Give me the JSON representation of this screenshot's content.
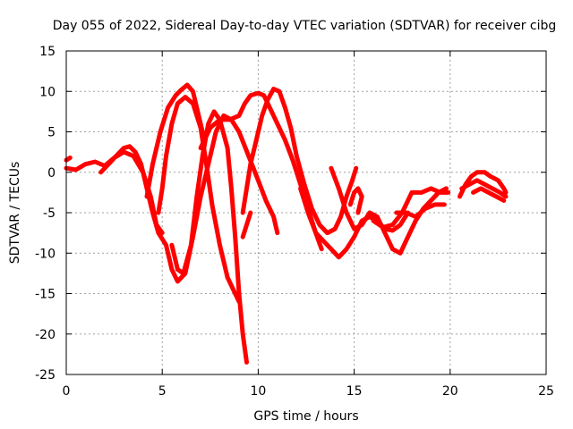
{
  "chart_data": {
    "type": "scatter",
    "title": "Day 055 of 2022, Sidereal Day-to-day VTEC variation (SDTVAR) for receiver cibg",
    "xlabel": "GPS time / hours",
    "ylabel": "SDTVAR / TECUs",
    "xlim": [
      0,
      25
    ],
    "ylim": [
      -25,
      15
    ],
    "xticks": [
      0,
      5,
      10,
      15,
      20,
      25
    ],
    "yticks": [
      -25,
      -20,
      -15,
      -10,
      -5,
      0,
      5,
      10,
      15
    ],
    "xtick_labels": [
      "0",
      "5",
      "10",
      "15",
      "20",
      "25"
    ],
    "ytick_labels": [
      "-25",
      "-20",
      "-15",
      "-10",
      "-5",
      "0",
      "5",
      "10",
      "15"
    ],
    "grid": true,
    "marker": "plus",
    "color": "#ff0000",
    "series": [
      {
        "name": "track-1",
        "points": [
          [
            0.0,
            0.5
          ],
          [
            0.5,
            0.3
          ],
          [
            1.0,
            1.0
          ],
          [
            1.5,
            1.3
          ],
          [
            2.0,
            0.8
          ],
          [
            2.5,
            1.8
          ],
          [
            3.0,
            2.5
          ],
          [
            3.5,
            2.0
          ],
          [
            4.0,
            0.0
          ],
          [
            4.4,
            -3.0
          ],
          [
            4.7,
            -6.5
          ],
          [
            5.0,
            -7.5
          ]
        ]
      },
      {
        "name": "track-2",
        "points": [
          [
            1.8,
            0.0
          ],
          [
            2.2,
            1.0
          ],
          [
            2.6,
            2.0
          ],
          [
            3.0,
            3.0
          ],
          [
            3.3,
            3.2
          ],
          [
            3.6,
            2.5
          ],
          [
            3.9,
            1.0
          ],
          [
            4.2,
            -2.0
          ],
          [
            4.5,
            -5.0
          ],
          [
            4.8,
            -7.5
          ],
          [
            5.2,
            -9.0
          ],
          [
            5.5,
            -12.0
          ],
          [
            5.8,
            -13.5
          ],
          [
            6.2,
            -12.5
          ],
          [
            6.6,
            -8.0
          ],
          [
            7.0,
            -3.0
          ],
          [
            7.4,
            1.0
          ],
          [
            7.8,
            5.0
          ],
          [
            8.2,
            7.0
          ],
          [
            8.6,
            6.5
          ],
          [
            9.0,
            5.0
          ]
        ]
      },
      {
        "name": "track-3",
        "points": [
          [
            4.8,
            -5.0
          ],
          [
            5.0,
            -2.0
          ],
          [
            5.2,
            2.0
          ],
          [
            5.5,
            6.0
          ],
          [
            5.8,
            8.5
          ],
          [
            6.2,
            9.3
          ],
          [
            6.6,
            8.5
          ],
          [
            7.0,
            5.5
          ],
          [
            7.3,
            1.0
          ],
          [
            7.6,
            -4.0
          ],
          [
            8.0,
            -9.0
          ],
          [
            8.4,
            -13.0
          ],
          [
            8.8,
            -15.0
          ],
          [
            9.0,
            -16.0
          ]
        ]
      },
      {
        "name": "track-4",
        "points": [
          [
            5.5,
            -9.0
          ],
          [
            5.8,
            -12.0
          ],
          [
            6.1,
            -12.5
          ],
          [
            6.5,
            -9.0
          ],
          [
            6.8,
            -3.0
          ],
          [
            7.1,
            2.0
          ],
          [
            7.4,
            6.0
          ],
          [
            7.7,
            7.5
          ],
          [
            8.0,
            6.5
          ],
          [
            8.4,
            3.0
          ],
          [
            8.6,
            -2.0
          ],
          [
            8.8,
            -8.0
          ],
          [
            9.0,
            -15.0
          ],
          [
            9.2,
            -20.0
          ],
          [
            9.4,
            -23.5
          ]
        ]
      },
      {
        "name": "track-5",
        "points": [
          [
            4.2,
            -3.0
          ],
          [
            4.5,
            1.0
          ],
          [
            4.9,
            5.0
          ],
          [
            5.3,
            8.0
          ],
          [
            5.7,
            9.5
          ],
          [
            6.0,
            10.2
          ],
          [
            6.3,
            10.8
          ],
          [
            6.6,
            10.0
          ],
          [
            6.9,
            7.0
          ],
          [
            7.2,
            4.0
          ]
        ]
      },
      {
        "name": "track-6",
        "points": [
          [
            7.0,
            3.0
          ],
          [
            7.5,
            5.5
          ],
          [
            8.0,
            6.5
          ],
          [
            8.5,
            6.5
          ],
          [
            9.0,
            7.0
          ],
          [
            9.3,
            8.5
          ],
          [
            9.6,
            9.5
          ],
          [
            10.0,
            9.8
          ],
          [
            10.3,
            9.5
          ],
          [
            10.6,
            8.0
          ],
          [
            11.0,
            6.0
          ],
          [
            11.4,
            4.0
          ],
          [
            11.8,
            1.5
          ],
          [
            12.2,
            -1.5
          ],
          [
            12.6,
            -4.5
          ],
          [
            13.0,
            -7.5
          ],
          [
            13.3,
            -9.5
          ]
        ]
      },
      {
        "name": "track-7",
        "points": [
          [
            9.2,
            -5.0
          ],
          [
            9.4,
            -2.0
          ],
          [
            9.6,
            1.0
          ],
          [
            9.9,
            4.0
          ],
          [
            10.2,
            7.0
          ],
          [
            10.5,
            9.0
          ],
          [
            10.8,
            10.3
          ],
          [
            11.1,
            10.0
          ],
          [
            11.4,
            8.0
          ],
          [
            11.7,
            5.5
          ],
          [
            12.0,
            2.0
          ],
          [
            12.4,
            -1.5
          ],
          [
            12.8,
            -4.5
          ],
          [
            13.2,
            -6.5
          ],
          [
            13.6,
            -7.5
          ],
          [
            14.0,
            -7.0
          ],
          [
            14.3,
            -5.5
          ],
          [
            14.6,
            -3.0
          ],
          [
            14.9,
            -1.0
          ],
          [
            15.1,
            0.5
          ]
        ]
      },
      {
        "name": "track-8",
        "points": [
          [
            9.0,
            5.0
          ],
          [
            9.5,
            2.0
          ],
          [
            10.0,
            -1.0
          ],
          [
            10.4,
            -3.5
          ],
          [
            10.8,
            -5.5
          ],
          [
            11.0,
            -7.5
          ]
        ]
      },
      {
        "name": "track-9",
        "points": [
          [
            9.2,
            -8.0
          ],
          [
            9.4,
            -6.5
          ],
          [
            9.6,
            -5.0
          ]
        ]
      },
      {
        "name": "track-10",
        "points": [
          [
            12.2,
            -2.0
          ],
          [
            12.6,
            -5.0
          ],
          [
            13.0,
            -7.5
          ],
          [
            13.4,
            -8.5
          ],
          [
            13.8,
            -9.5
          ],
          [
            14.2,
            -10.5
          ],
          [
            14.6,
            -9.5
          ],
          [
            15.0,
            -8.0
          ],
          [
            15.4,
            -6.0
          ],
          [
            15.8,
            -5.5
          ],
          [
            16.2,
            -6.0
          ],
          [
            16.6,
            -7.0
          ],
          [
            17.0,
            -7.2
          ],
          [
            17.4,
            -6.5
          ],
          [
            17.8,
            -5.0
          ]
        ]
      },
      {
        "name": "track-11",
        "points": [
          [
            13.8,
            0.5
          ],
          [
            14.2,
            -2.0
          ],
          [
            14.6,
            -5.0
          ],
          [
            15.0,
            -7.0
          ],
          [
            15.4,
            -6.5
          ],
          [
            15.8,
            -5.0
          ],
          [
            16.2,
            -5.5
          ],
          [
            16.6,
            -7.5
          ],
          [
            17.0,
            -9.5
          ],
          [
            17.4,
            -10.0
          ],
          [
            17.8,
            -8.0
          ],
          [
            18.2,
            -6.0
          ],
          [
            18.6,
            -4.5
          ],
          [
            19.0,
            -3.5
          ],
          [
            19.4,
            -2.5
          ],
          [
            19.8,
            -2.0
          ]
        ]
      },
      {
        "name": "track-12",
        "points": [
          [
            14.8,
            -4.0
          ],
          [
            15.0,
            -2.5
          ],
          [
            15.2,
            -2.0
          ],
          [
            15.4,
            -3.0
          ],
          [
            15.2,
            -5.0
          ]
        ]
      },
      {
        "name": "track-13",
        "points": [
          [
            16.0,
            -6.0
          ],
          [
            16.5,
            -6.8
          ],
          [
            17.0,
            -6.5
          ],
          [
            17.5,
            -5.0
          ],
          [
            18.0,
            -2.5
          ],
          [
            18.5,
            -2.5
          ],
          [
            19.0,
            -2.0
          ],
          [
            19.5,
            -2.5
          ],
          [
            19.9,
            -2.5
          ]
        ]
      },
      {
        "name": "track-14",
        "points": [
          [
            17.2,
            -5.0
          ],
          [
            17.7,
            -5.0
          ],
          [
            18.2,
            -5.5
          ],
          [
            18.7,
            -4.5
          ],
          [
            19.2,
            -4.0
          ],
          [
            19.7,
            -4.0
          ]
        ]
      },
      {
        "name": "track-15",
        "points": [
          [
            20.5,
            -3.0
          ],
          [
            20.8,
            -1.5
          ],
          [
            21.1,
            -0.5
          ],
          [
            21.4,
            0.0
          ],
          [
            21.8,
            0.0
          ],
          [
            22.1,
            -0.5
          ],
          [
            22.5,
            -1.0
          ],
          [
            22.8,
            -2.0
          ],
          [
            22.9,
            -2.5
          ]
        ]
      },
      {
        "name": "track-16",
        "points": [
          [
            20.6,
            -2.0
          ],
          [
            21.0,
            -1.5
          ],
          [
            21.4,
            -1.0
          ],
          [
            21.8,
            -1.5
          ],
          [
            22.2,
            -2.0
          ],
          [
            22.6,
            -2.5
          ],
          [
            22.9,
            -3.0
          ]
        ]
      },
      {
        "name": "track-17",
        "points": [
          [
            21.2,
            -2.5
          ],
          [
            21.6,
            -2.0
          ],
          [
            22.0,
            -2.5
          ],
          [
            22.4,
            -3.0
          ],
          [
            22.8,
            -3.5
          ]
        ]
      },
      {
        "name": "track-18",
        "points": [
          [
            0.0,
            1.5
          ],
          [
            0.2,
            1.8
          ]
        ]
      }
    ]
  }
}
